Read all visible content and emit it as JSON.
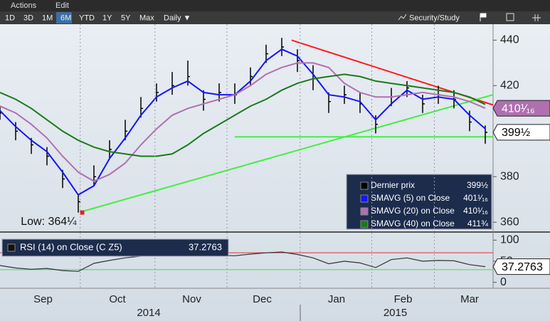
{
  "toolbar": {
    "menus": [
      "Actions",
      "Edit"
    ],
    "periods": [
      "1D",
      "3D",
      "1M",
      "6M",
      "YTD",
      "1Y",
      "5Y",
      "Max"
    ],
    "active_period": 3,
    "frequency": "Daily ▼",
    "study": "Security/Study"
  },
  "chart_data": [
    {
      "type": "ohlc",
      "xlim": [
        0,
        126
      ],
      "ylim": [
        356,
        447
      ],
      "yticks": [
        360,
        380,
        420,
        440
      ],
      "x": [
        0,
        4,
        8,
        12,
        16,
        20,
        24,
        28,
        32,
        36,
        40,
        44,
        48,
        52,
        56,
        60,
        64,
        68,
        72,
        76,
        80,
        84,
        88,
        92,
        96,
        100,
        104,
        108,
        112,
        116,
        120,
        124
      ],
      "series": [
        {
          "name": "Dernier prix",
          "color": "#000000",
          "tag": true,
          "values": [
            408,
            400,
            394,
            389,
            379,
            369,
            380,
            392,
            400,
            410,
            417,
            420,
            424,
            414,
            417,
            416,
            424,
            434,
            437,
            431,
            423,
            413,
            416,
            412,
            403,
            415,
            419,
            412,
            416,
            414,
            404,
            399.5
          ],
          "high": [
            411,
            404,
            397,
            393,
            383,
            372,
            385,
            396,
            405,
            415,
            421,
            426,
            431,
            418,
            421,
            421,
            428,
            438,
            441,
            436,
            429,
            417,
            420,
            417,
            407,
            419,
            422,
            416,
            420,
            418,
            409,
            402.5
          ],
          "low": [
            405,
            396,
            390,
            385,
            375,
            364.25,
            376,
            388,
            396,
            406,
            413,
            416,
            420,
            409,
            413,
            412,
            420,
            430,
            433,
            426,
            418,
            408,
            412,
            408,
            399,
            411,
            415,
            408,
            412,
            410,
            400,
            394.5
          ],
          "legend_value": {
            "value": 399.5,
            "label": "399½"
          }
        },
        {
          "name": "SMAVG (5) on Close",
          "color": "#1414ff",
          "values": [
            409,
            402,
            396,
            391,
            382,
            372,
            376,
            388,
            397,
            407,
            415,
            419,
            422,
            417,
            416,
            416,
            422,
            431,
            436,
            433,
            425,
            416,
            415,
            413,
            405,
            412,
            418,
            414,
            415,
            414,
            407,
            401.0625
          ],
          "legend_value": {
            "value": 401.0625,
            "label": "401¹⁄₁₆"
          }
        },
        {
          "name": "SMAVG (20) on Close",
          "color": "#b070b0",
          "tag": true,
          "values": [
            411,
            408,
            403,
            397,
            389,
            382,
            378,
            381,
            386,
            394,
            401,
            407,
            410,
            412,
            414,
            416,
            420,
            425,
            428,
            430,
            430,
            428,
            421,
            417,
            415,
            415,
            416,
            417,
            416,
            415,
            413,
            410.0625
          ],
          "legend_value": {
            "value": 410.0625,
            "label": "410¹⁄₁₆"
          }
        },
        {
          "name": "SMAVG (40) on Close",
          "color": "#1a7a1a",
          "values": [
            417,
            414,
            410,
            405,
            400,
            396,
            393,
            391,
            390,
            389,
            389,
            390,
            394,
            399,
            403,
            407,
            411,
            414,
            418,
            421,
            423,
            424,
            425,
            424,
            422,
            421,
            420,
            419,
            418,
            417,
            415,
            411.75
          ],
          "legend_value": {
            "value": 411.75,
            "label": "411¾"
          }
        }
      ],
      "trend_lines": [
        {
          "color": "#ff1a1a",
          "x": [
            74.5,
            126
          ],
          "y": [
            440,
            411.5
          ]
        },
        {
          "color": "#44ee44",
          "x": [
            21,
            126
          ],
          "y": [
            364.7,
            416
          ]
        },
        {
          "color": "#44ee44",
          "x": [
            60,
            126
          ],
          "y": [
            397.5,
            397.5
          ]
        }
      ],
      "annotation": {
        "text": "Low: 364¼",
        "x": 21,
        "y": 364.25
      }
    },
    {
      "type": "line",
      "xlim": [
        0,
        126
      ],
      "ylim": [
        -14,
        117.5
      ],
      "yticks": [
        0,
        50,
        100
      ],
      "x": [
        0,
        4,
        8,
        12,
        16,
        20,
        24,
        28,
        32,
        36,
        40,
        44,
        48,
        52,
        56,
        60,
        64,
        68,
        72,
        76,
        80,
        84,
        88,
        92,
        96,
        100,
        104,
        108,
        112,
        116,
        120,
        124
      ],
      "levels": [
        {
          "value": 70,
          "color": "#e03030"
        },
        {
          "value": 30,
          "color": "#44dd44"
        }
      ],
      "series": [
        {
          "name": "RSI (14) on Close (C Z5)",
          "color": "#333333",
          "tag": true,
          "values": [
            40,
            34,
            31,
            33,
            28,
            26,
            45,
            52,
            58,
            62,
            64,
            68,
            72,
            62,
            64,
            63,
            67,
            70,
            72,
            66,
            58,
            44,
            50,
            46,
            35,
            54,
            58,
            50,
            52,
            51,
            42,
            37.2763
          ],
          "legend_value": {
            "value": 37.2763,
            "label": "37.2763"
          }
        }
      ],
      "xticks": [
        {
          "value": 11,
          "label": "Sep"
        },
        {
          "value": 30,
          "label": "Oct"
        },
        {
          "value": 49,
          "label": "Nov"
        },
        {
          "value": 67,
          "label": "Dec"
        },
        {
          "value": 86,
          "label": "Jan"
        },
        {
          "value": 103,
          "label": "Feb"
        },
        {
          "value": 120,
          "label": "Mar"
        }
      ],
      "year_ticks": [
        {
          "value": 38,
          "label": "2014"
        },
        {
          "value": 101,
          "label": "2015"
        }
      ],
      "separators": [
        20.5,
        39.6,
        58,
        76.7,
        95,
        111
      ]
    }
  ]
}
